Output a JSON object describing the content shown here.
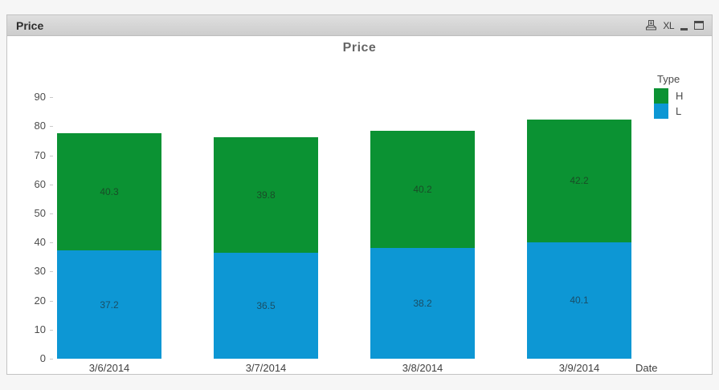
{
  "window_caption": {
    "title": "Price",
    "icons": [
      {
        "name": "print-icon"
      },
      {
        "name": "excel-export-icon",
        "label": "XL"
      },
      {
        "name": "minimize-icon"
      },
      {
        "name": "maximize-icon"
      }
    ]
  },
  "chart_data": {
    "type": "bar",
    "stacked": true,
    "title": "Price",
    "categories": [
      "3/6/2014",
      "3/7/2014",
      "3/8/2014",
      "3/9/2014"
    ],
    "series": [
      {
        "name": "L",
        "color": "#0d97d4",
        "values": [
          37.2,
          36.5,
          38.2,
          40.1
        ]
      },
      {
        "name": "H",
        "color": "#0b9233",
        "values": [
          40.3,
          39.8,
          40.2,
          42.2
        ]
      }
    ],
    "totals": [
      77.5,
      76.3,
      78.4,
      82.3
    ],
    "xlabel": "Date",
    "legend_title": "Type",
    "legend_position": "right",
    "legend_order": [
      "H",
      "L"
    ],
    "ylim": [
      0,
      90
    ],
    "yticks": [
      0,
      10,
      20,
      30,
      40,
      50,
      60,
      70,
      80,
      90
    ],
    "grid": false,
    "value_labels": true
  }
}
